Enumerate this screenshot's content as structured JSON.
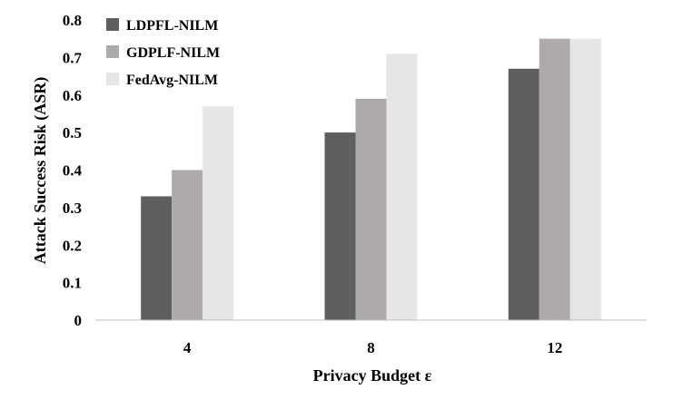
{
  "chart_data": {
    "type": "bar",
    "title": "",
    "xlabel": "Privacy Budget ε",
    "ylabel": "Attack Success Risk (ASR)",
    "categories": [
      "4",
      "8",
      "12"
    ],
    "series": [
      {
        "name": "LDPFL-NILM",
        "color": "#5f5f5f",
        "values": [
          0.33,
          0.5,
          0.67
        ]
      },
      {
        "name": "GDPLF-NILM",
        "color": "#aeaaaa",
        "values": [
          0.4,
          0.59,
          0.75
        ]
      },
      {
        "name": "FedAvg-NILM",
        "color": "#e6e6e6",
        "values": [
          0.57,
          0.71,
          0.75
        ]
      }
    ],
    "ylim": [
      0,
      0.8
    ],
    "yticks": [
      "0",
      "0.1",
      "0.2",
      "0.3",
      "0.4",
      "0.5",
      "0.6",
      "0.7",
      "0.8"
    ],
    "grid": false,
    "legend_position": "top-left"
  }
}
